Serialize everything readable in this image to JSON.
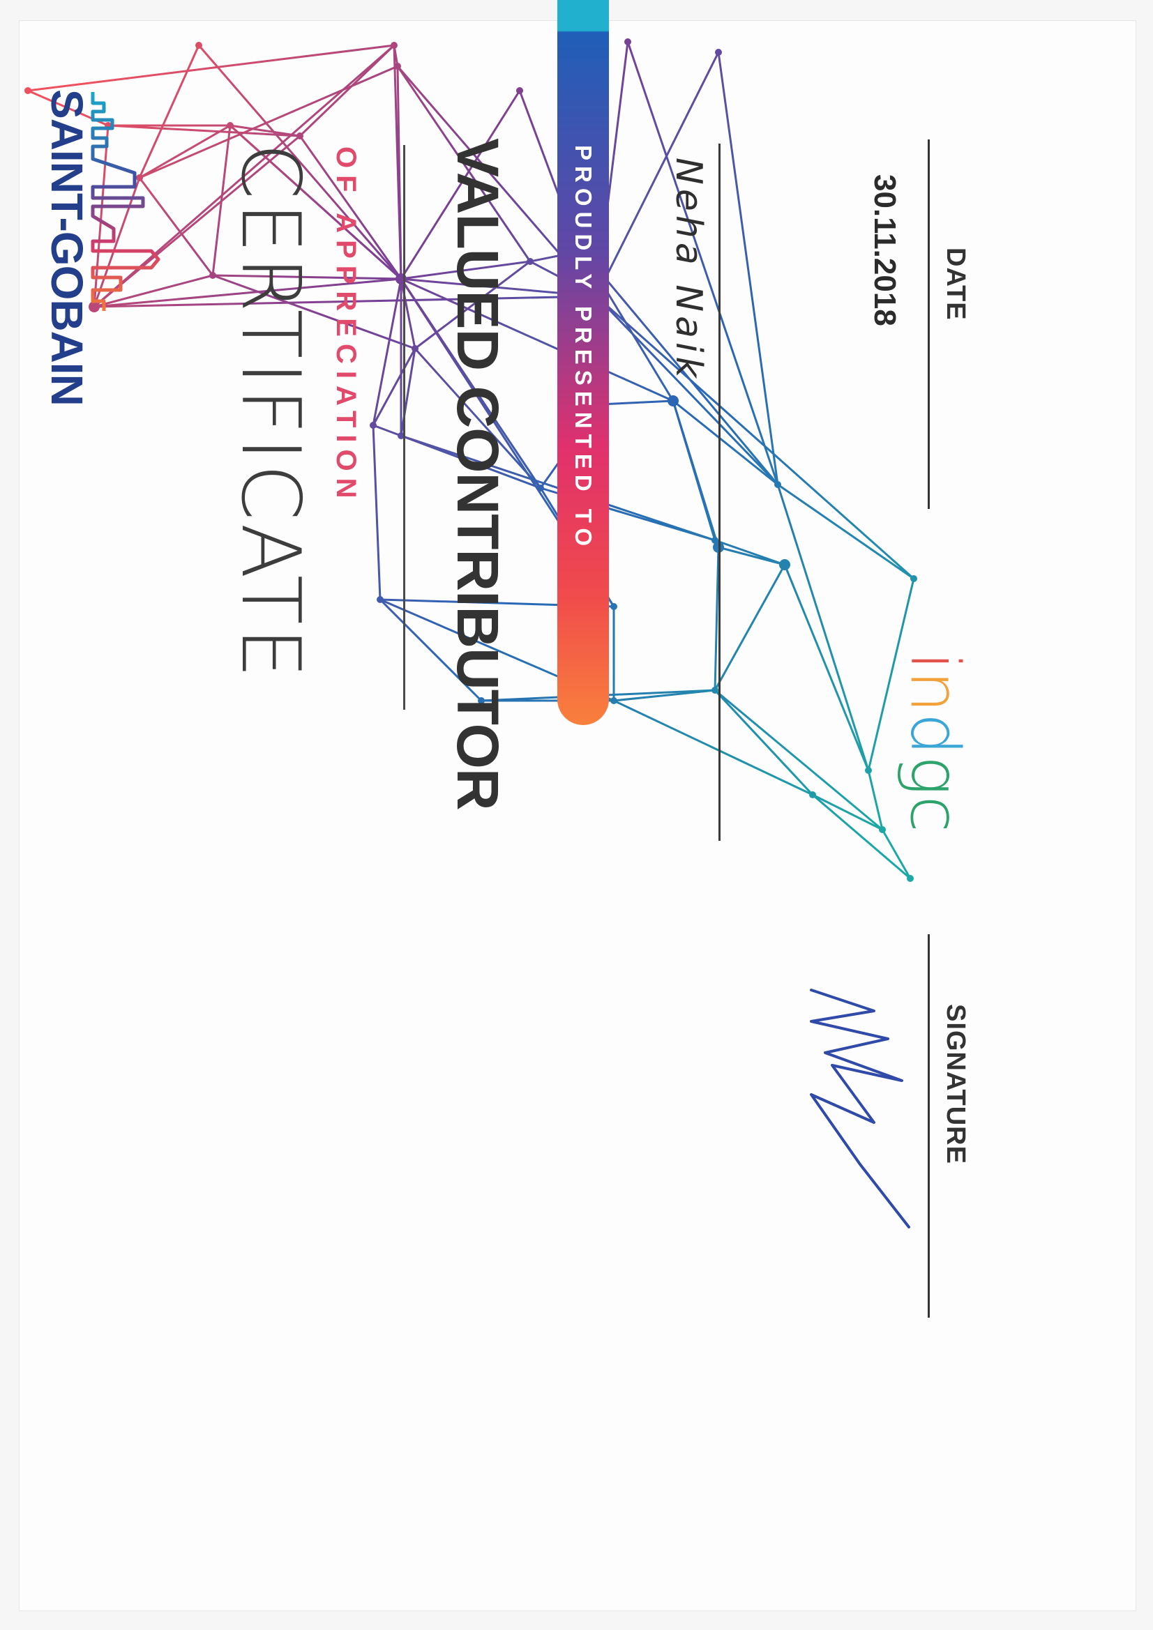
{
  "brand": {
    "name": "SAINT-GOBAIN",
    "color": "#233e8a",
    "accent_color": "#e24a6c"
  },
  "certificate": {
    "title": "CERTIFICATE",
    "subtitle": "OF APPRECIATION",
    "award": "VALUED CONTRIBUTOR",
    "presented_to_label": "PROUDLY PRESENTED TO",
    "recipient": "Neha Naik"
  },
  "footer": {
    "date_value": "30.11.2018",
    "date_label": "DATE",
    "program_logo_text": "indgc",
    "signature_label": "SIGNATURE"
  },
  "icons": {
    "brand_logo": "building-skyline-logo-icon",
    "network_decoration": "polygon-network-decoration",
    "signature": "handwritten-signature"
  }
}
